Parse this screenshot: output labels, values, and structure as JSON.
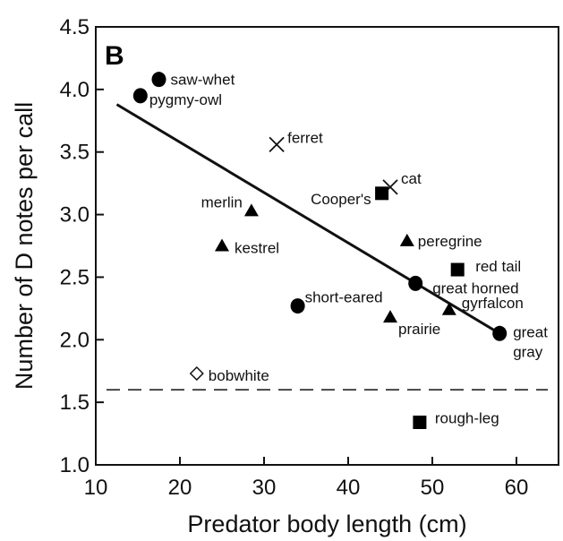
{
  "chart_data": {
    "type": "scatter",
    "panel_label": "B",
    "xlabel": "Predator body length (cm)",
    "ylabel": "Number of D notes per call",
    "xlim": [
      10,
      65
    ],
    "ylim": [
      1.0,
      4.5
    ],
    "xticks": [
      10,
      20,
      30,
      40,
      50,
      60
    ],
    "yticks": [
      1.0,
      1.5,
      2.0,
      2.5,
      3.0,
      3.5,
      4.0,
      4.5
    ],
    "grid": false,
    "legend": "none",
    "points": [
      {
        "label": "saw-whet",
        "x": 17.5,
        "y": 4.08,
        "marker": "circle"
      },
      {
        "label": "pygmy-owl",
        "x": 15.3,
        "y": 3.95,
        "marker": "circle"
      },
      {
        "label": "ferret",
        "x": 31.5,
        "y": 3.56,
        "marker": "x"
      },
      {
        "label": "cat",
        "x": 45.0,
        "y": 3.22,
        "marker": "x"
      },
      {
        "label": "Cooper's",
        "x": 44.0,
        "y": 3.17,
        "marker": "square"
      },
      {
        "label": "merlin",
        "x": 28.5,
        "y": 3.03,
        "marker": "triangle"
      },
      {
        "label": "kestrel",
        "x": 25.0,
        "y": 2.75,
        "marker": "triangle"
      },
      {
        "label": "peregrine",
        "x": 47.0,
        "y": 2.79,
        "marker": "triangle"
      },
      {
        "label": "red tail",
        "x": 53.0,
        "y": 2.56,
        "marker": "square"
      },
      {
        "label": "great horned",
        "x": 48.0,
        "y": 2.45,
        "marker": "circle"
      },
      {
        "label": "gyrfalcon",
        "x": 52.0,
        "y": 2.24,
        "marker": "triangle"
      },
      {
        "label": "short-eared",
        "x": 34.0,
        "y": 2.27,
        "marker": "circle"
      },
      {
        "label": "prairie",
        "x": 45.0,
        "y": 2.18,
        "marker": "triangle"
      },
      {
        "label": "great gray",
        "x": 58.0,
        "y": 2.05,
        "marker": "circle"
      },
      {
        "label": "bobwhite",
        "x": 22.0,
        "y": 1.73,
        "marker": "open-diamond"
      },
      {
        "label": "rough-leg",
        "x": 48.5,
        "y": 1.34,
        "marker": "square"
      }
    ],
    "regression_line": {
      "x": [
        12.5,
        58.0
      ],
      "y": [
        3.88,
        2.05
      ]
    },
    "reference_line": {
      "y": 1.6,
      "style": "dashed"
    }
  }
}
